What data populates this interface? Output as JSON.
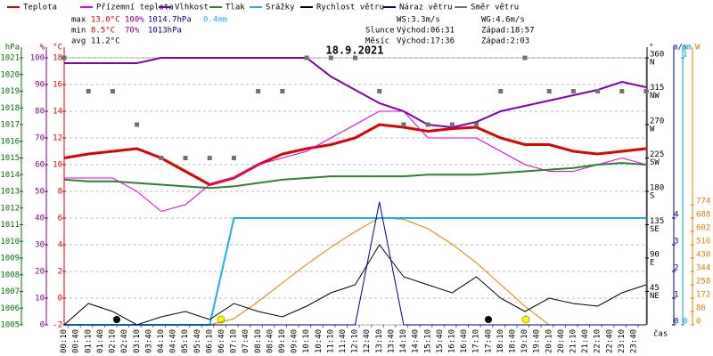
{
  "chart_data": {
    "type": "line",
    "title": "18.9.2021",
    "stats": {
      "max": {
        "label": "max",
        "temp": "13.0°C",
        "hum": "100%",
        "press": "1014.7hPa",
        "rain": "0.4mm"
      },
      "min": {
        "label": "min",
        "temp": "8.5°C",
        "hum": "70%",
        "press": "1013hPa"
      },
      "avg": {
        "label": "avg",
        "temp": "11.2°C"
      }
    },
    "info": {
      "ws": "WS:3.3m/s",
      "wg": "WG:4.6m/s",
      "sun": "Slunce",
      "sunrise": "Východ:06:31",
      "sunset": "Západ:18:57",
      "moon": "Měsíc",
      "moonrise": "Východ:17:36",
      "moonset": "Západ:2:03"
    },
    "xlabel": "čas",
    "xlim": [
      0,
      24
    ],
    "xticks": [
      {
        "value": 0.17,
        "label": "00:10"
      },
      {
        "value": 0.67,
        "label": "00:40"
      },
      {
        "value": 1.17,
        "label": "01:10"
      },
      {
        "value": 1.67,
        "label": "01:40"
      },
      {
        "value": 2.17,
        "label": "02:10"
      },
      {
        "value": 2.67,
        "label": "02:40"
      },
      {
        "value": 3.17,
        "label": "03:10"
      },
      {
        "value": 3.67,
        "label": "03:40"
      },
      {
        "value": 4.17,
        "label": "04:10"
      },
      {
        "value": 4.67,
        "label": "04:40"
      },
      {
        "value": 5.17,
        "label": "05:10"
      },
      {
        "value": 5.67,
        "label": "05:40"
      },
      {
        "value": 6.17,
        "label": "06:10"
      },
      {
        "value": 6.67,
        "label": "06:40"
      },
      {
        "value": 7.17,
        "label": "07:10"
      },
      {
        "value": 7.67,
        "label": "07:40"
      },
      {
        "value": 8.17,
        "label": "08:10"
      },
      {
        "value": 8.67,
        "label": "08:40"
      },
      {
        "value": 9.17,
        "label": "09:10"
      },
      {
        "value": 9.67,
        "label": "09:40"
      },
      {
        "value": 10.17,
        "label": "10:10"
      },
      {
        "value": 10.67,
        "label": "10:40"
      },
      {
        "value": 11.17,
        "label": "11:10"
      },
      {
        "value": 11.67,
        "label": "11:40"
      },
      {
        "value": 12.17,
        "label": "12:10"
      },
      {
        "value": 12.67,
        "label": "12:40"
      },
      {
        "value": 13.17,
        "label": "13:10"
      },
      {
        "value": 13.67,
        "label": "13:40"
      },
      {
        "value": 14.17,
        "label": "14:10"
      },
      {
        "value": 14.67,
        "label": "14:40"
      },
      {
        "value": 15.17,
        "label": "15:10"
      },
      {
        "value": 15.67,
        "label": "15:40"
      },
      {
        "value": 16.17,
        "label": "16:10"
      },
      {
        "value": 16.67,
        "label": "16:40"
      },
      {
        "value": 17.17,
        "label": "17:10"
      },
      {
        "value": 17.67,
        "label": "17:40"
      },
      {
        "value": 18.17,
        "label": "18:10"
      },
      {
        "value": 18.67,
        "label": "18:40"
      },
      {
        "value": 19.17,
        "label": "19:10"
      },
      {
        "value": 19.67,
        "label": "19:40"
      },
      {
        "value": 20.17,
        "label": "20:10"
      },
      {
        "value": 20.67,
        "label": "20:40"
      },
      {
        "value": 21.17,
        "label": "21:10"
      },
      {
        "value": 21.67,
        "label": "21:40"
      },
      {
        "value": 22.17,
        "label": "22:10"
      },
      {
        "value": 22.67,
        "label": "22:40"
      },
      {
        "value": 23.17,
        "label": "23:10"
      },
      {
        "value": 23.67,
        "label": "23:40"
      }
    ],
    "axes": [
      {
        "label": "hPa",
        "color": "#007000",
        "side": "left",
        "lim": [
          1005,
          1021
        ],
        "ticks": [
          1005,
          1006,
          1007,
          1008,
          1009,
          1010,
          1011,
          1012,
          1013,
          1014,
          1015,
          1016,
          1017,
          1018,
          1019,
          1020,
          1021
        ]
      },
      {
        "label": "%",
        "color": "#800080",
        "side": "left",
        "lim": [
          0,
          100
        ],
        "ticks": [
          0,
          10,
          20,
          30,
          40,
          50,
          60,
          70,
          80,
          90,
          100
        ],
        "grid": true
      },
      {
        "label": "°C",
        "color": "#e00000",
        "side": "left",
        "lim": [
          -2,
          18
        ],
        "ticks": [
          -2,
          0,
          2,
          4,
          6,
          8,
          10,
          12,
          14,
          16,
          18
        ]
      },
      {
        "label": "°",
        "color": "#000000",
        "side": "right",
        "lim": [
          0,
          360
        ],
        "ticks": [
          {
            "value": 45,
            "label": "45",
            "dir": "NE"
          },
          {
            "value": 90,
            "label": "90",
            "dir": "E"
          },
          {
            "value": 135,
            "label": "135",
            "dir": "SE"
          },
          {
            "value": 180,
            "label": "180",
            "dir": "S"
          },
          {
            "value": 225,
            "label": "225",
            "dir": "SW"
          },
          {
            "value": 270,
            "label": "270",
            "dir": "W"
          },
          {
            "value": 315,
            "label": "315",
            "dir": "NW"
          },
          {
            "value": 360,
            "label": "360",
            "dir": "N"
          }
        ]
      },
      {
        "label": "m/s",
        "color": "#000080",
        "side": "right",
        "lim": [
          0,
          10
        ],
        "ticks": [
          0,
          1,
          2,
          3,
          4
        ]
      },
      {
        "label": "mm",
        "color": "#00a0d0",
        "side": "right",
        "lim": [
          0,
          1
        ],
        "ticks": [
          0,
          1
        ]
      },
      {
        "label": "W",
        "color": "#e08000",
        "side": "right",
        "lim": [
          0,
          1720
        ],
        "ticks": [
          0,
          86,
          172,
          258,
          344,
          430,
          516,
          602,
          688,
          774
        ]
      }
    ],
    "x": [
      0,
      1,
      2,
      3,
      4,
      5,
      6,
      7,
      8,
      9,
      10,
      11,
      12,
      13,
      14,
      15,
      16,
      17,
      18,
      19,
      20,
      21,
      22,
      23,
      24
    ],
    "radiation": {
      "color": "#e08000",
      "axis": "W",
      "values": [
        0,
        0,
        0,
        0,
        0,
        0,
        0,
        40,
        150,
        270,
        390,
        500,
        600,
        690,
        680,
        620,
        520,
        400,
        260,
        120,
        0,
        0,
        0,
        0,
        0
      ]
    },
    "series": [
      {
        "name": "Teplota",
        "color": "#e00000",
        "axis": "°C",
        "width": 3,
        "values": [
          10.5,
          10.8,
          11,
          11.2,
          10.5,
          9.5,
          8.5,
          9,
          10,
          10.8,
          11.2,
          11.5,
          12,
          13,
          12.8,
          12.5,
          12.7,
          12.8,
          12,
          11.5,
          11.5,
          11,
          10.8,
          11,
          11.2
        ]
      },
      {
        "name": "Přízemní teplota",
        "color": "#e000e0",
        "axis": "°C",
        "width": 1,
        "values": [
          9,
          9,
          9,
          8,
          6.5,
          7,
          8.5,
          9,
          10,
          10.5,
          11,
          12,
          13,
          14,
          14,
          12,
          12,
          12,
          11,
          10,
          9.5,
          9.5,
          10,
          10.5,
          10
        ]
      },
      {
        "name": "Vlhkost",
        "color": "#8000b0",
        "axis": "%",
        "width": 2,
        "values": [
          98,
          98,
          98,
          98,
          100,
          100,
          100,
          100,
          100,
          100,
          100,
          93,
          88,
          83,
          80,
          75,
          74,
          76,
          80,
          82,
          84,
          86,
          88,
          91,
          89
        ]
      },
      {
        "name": "Tlak",
        "color": "#308030",
        "axis": "hPa",
        "width": 2,
        "values": [
          1013.7,
          1013.6,
          1013.6,
          1013.5,
          1013.4,
          1013.3,
          1013.2,
          1013.3,
          1013.5,
          1013.7,
          1013.8,
          1013.9,
          1013.9,
          1013.9,
          1013.9,
          1014,
          1014,
          1014,
          1014.1,
          1014.2,
          1014.3,
          1014.4,
          1014.6,
          1014.7,
          1014.6
        ]
      },
      {
        "name": "Srážky",
        "color": "#20b0e0",
        "axis": "mm",
        "width": 2,
        "values": [
          0,
          0,
          0,
          0,
          0,
          0,
          0,
          0.4,
          0.4,
          0.4,
          0.4,
          0.4,
          0.4,
          0.4,
          0.4,
          0.4,
          0.4,
          0.4,
          0.4,
          0.4,
          0.4,
          0.4,
          0.4,
          0.4,
          0.4
        ]
      },
      {
        "name": "Rychlost větru",
        "color": "#000000",
        "axis": "m/s",
        "width": 1,
        "values": [
          0,
          0.8,
          0.5,
          0,
          0.3,
          0.5,
          0.2,
          0.8,
          0.5,
          0.3,
          0.7,
          1.2,
          1.5,
          3,
          1.8,
          1.5,
          1.2,
          1.8,
          1,
          0.5,
          1,
          0.8,
          0.7,
          1.2,
          1.5
        ]
      },
      {
        "name": "Náraz větru",
        "color": "#000080",
        "axis": "m/s",
        "width": 1,
        "values": [
          0,
          0,
          0,
          0,
          0,
          0,
          0,
          0,
          0,
          0,
          0,
          0,
          0,
          4.6,
          0,
          0,
          0,
          0,
          0,
          0,
          0,
          0,
          0,
          0,
          0
        ]
      },
      {
        "name": "Směr větru",
        "color": "#707070",
        "axis": "°",
        "kind": "scatter",
        "values": [
          360,
          315,
          315,
          270,
          225,
          225,
          225,
          225,
          315,
          315,
          360,
          360,
          360,
          315,
          270,
          270,
          270,
          270,
          315,
          360,
          315,
          315,
          315,
          315,
          315
        ]
      }
    ]
  }
}
